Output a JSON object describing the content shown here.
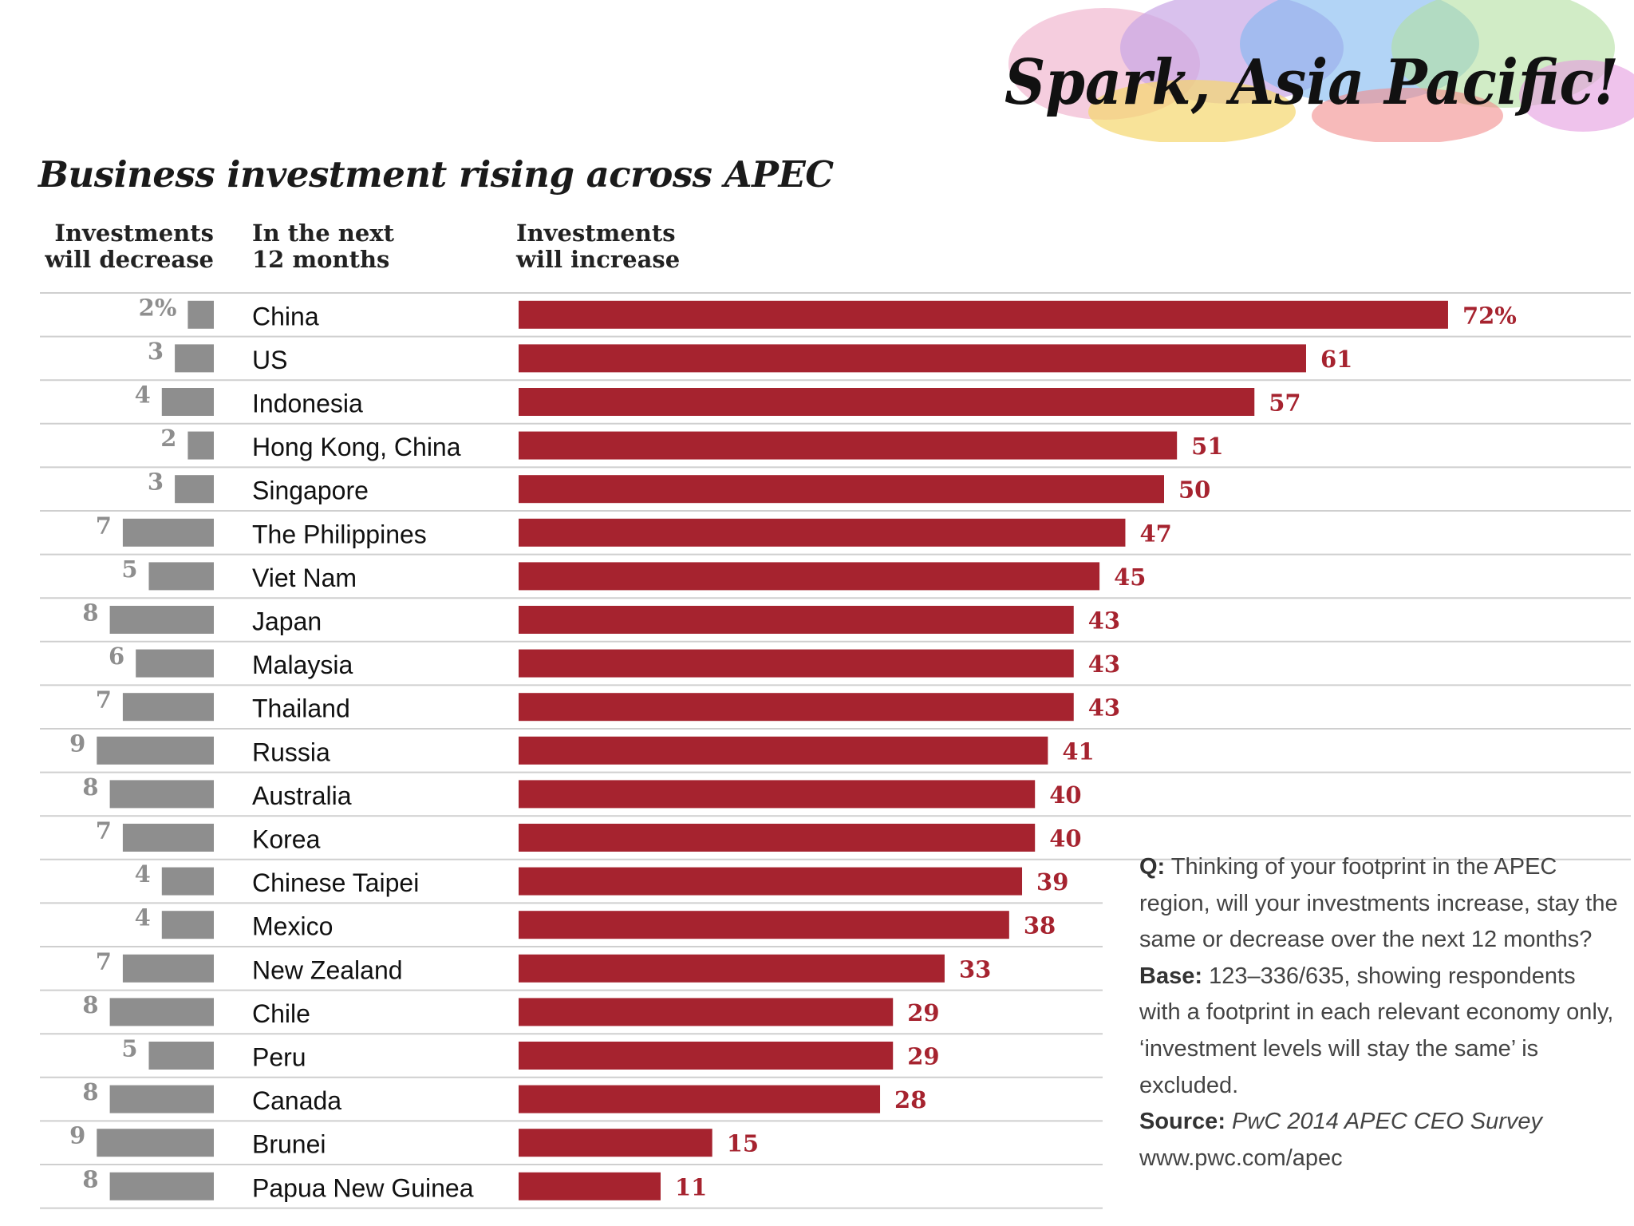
{
  "logo": {
    "text": "Spark, Asia Pacific!"
  },
  "headers": {
    "decrease": "Investments\nwill decrease",
    "period": "In the next\n12 months",
    "increase": "Investments\nwill increase"
  },
  "note": {
    "q_label": "Q:",
    "q_text": "Thinking of your footprint in the APEC region, will your investments increase, stay the same or decrease over the next 12 months?",
    "base_label": "Base:",
    "base_text": "123–336/635, showing respondents with a footprint in each relevant economy only, ‘investment levels will stay the same’ is excluded.",
    "source_label": "Source:",
    "source_text": "PwC 2014 APEC CEO Survey",
    "url": "www.pwc.com/apec"
  },
  "chart_data": {
    "type": "bar",
    "title": "Business investment rising across APEC",
    "categories": [
      "China",
      "US",
      "Indonesia",
      "Hong Kong, China",
      "Singapore",
      "The Philippines",
      "Viet Nam",
      "Japan",
      "Malaysia",
      "Thailand",
      "Russia",
      "Australia",
      "Korea",
      "Chinese Taipei",
      "Mexico",
      "New Zealand",
      "Chile",
      "Peru",
      "Canada",
      "Brunei",
      "Papua New Guinea"
    ],
    "series": [
      {
        "name": "Investments will decrease",
        "values": [
          2,
          3,
          4,
          2,
          3,
          7,
          5,
          8,
          6,
          7,
          9,
          8,
          7,
          4,
          4,
          7,
          8,
          5,
          8,
          9,
          8
        ],
        "color": "#8e8e8e"
      },
      {
        "name": "Investments will increase",
        "values": [
          72,
          61,
          57,
          51,
          50,
          47,
          45,
          43,
          43,
          43,
          41,
          40,
          40,
          39,
          38,
          33,
          29,
          29,
          28,
          15,
          11
        ],
        "color": "#a6232f"
      }
    ],
    "value_labels_decrease": [
      "2%",
      "3",
      "4",
      "2",
      "3",
      "7",
      "5",
      "8",
      "6",
      "7",
      "9",
      "8",
      "7",
      "4",
      "4",
      "7",
      "8",
      "5",
      "8",
      "9",
      "8"
    ],
    "value_labels_increase": [
      "72%",
      "61",
      "57",
      "51",
      "50",
      "47",
      "45",
      "43",
      "43",
      "43",
      "41",
      "40",
      "40",
      "39",
      "38",
      "33",
      "29",
      "29",
      "28",
      "15",
      "11"
    ],
    "ylim": [
      0,
      72
    ],
    "grid": false,
    "legend": "column headers"
  }
}
